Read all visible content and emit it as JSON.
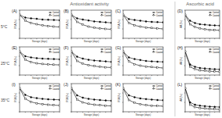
{
  "headers": [
    "Antioxidant activity",
    "Ascorbic acid"
  ],
  "row_labels": [
    "5°C",
    "25°C",
    "35°C"
  ],
  "chart_data": [
    {
      "type": "line",
      "title": "(A)",
      "x_label": "Storage (days)",
      "y_label": "RSA (%)",
      "x": [
        0,
        1,
        2,
        3,
        4,
        5,
        6,
        7
      ],
      "xlim": [
        0,
        7
      ],
      "xticks": [
        0,
        1,
        2,
        3,
        4,
        5,
        6,
        7
      ],
      "ylim": [
        0,
        120
      ],
      "yticks": [
        0,
        40,
        80,
        120
      ],
      "tick_labels": false,
      "legend": "upper right",
      "series": [
        {
          "name": "Control",
          "color": "#000000",
          "marker": "circle",
          "values": [
            100,
            88,
            85,
            83,
            80,
            79,
            78,
            77
          ]
        },
        {
          "name": "Coated",
          "color": "#000000",
          "marker": "square",
          "values": [
            100,
            75,
            65,
            60,
            55,
            52,
            50,
            48
          ]
        }
      ]
    },
    {
      "type": "line",
      "title": "(B)",
      "x_label": "Storage (days)",
      "y_label": "RSA (%)",
      "x": [
        0,
        1,
        2,
        3,
        4,
        5,
        6,
        7
      ],
      "xlim": [
        0,
        7
      ],
      "xticks": [
        0,
        1,
        2,
        3,
        4,
        5,
        6,
        7
      ],
      "ylim": [
        0,
        120
      ],
      "yticks": [
        0,
        40,
        80,
        120
      ],
      "tick_labels": false,
      "legend": "upper right",
      "series": [
        {
          "name": "Control",
          "color": "#000000",
          "marker": "circle",
          "values": [
            100,
            85,
            80,
            76,
            72,
            70,
            68,
            66
          ]
        },
        {
          "name": "Coated",
          "color": "#000000",
          "marker": "square",
          "values": [
            100,
            70,
            58,
            50,
            45,
            42,
            40,
            38
          ]
        }
      ]
    },
    {
      "type": "line",
      "title": "(C)",
      "x_label": "Storage (days)",
      "y_label": "RSA (%)",
      "x": [
        0,
        1,
        2,
        3,
        4,
        5,
        6,
        7
      ],
      "xlim": [
        0,
        7
      ],
      "xticks": [
        0,
        1,
        2,
        3,
        4,
        5,
        6,
        7
      ],
      "ylim": [
        0,
        120
      ],
      "yticks": [
        0,
        40,
        80,
        120
      ],
      "tick_labels": false,
      "legend": "upper right",
      "series": [
        {
          "name": "Control",
          "color": "#000000",
          "marker": "circle",
          "values": [
            100,
            82,
            78,
            75,
            72,
            70,
            69,
            68
          ]
        },
        {
          "name": "Coated",
          "color": "#000000",
          "marker": "square",
          "values": [
            100,
            65,
            55,
            50,
            46,
            44,
            42,
            40
          ]
        }
      ]
    },
    {
      "type": "line",
      "title": "(D)",
      "x_label": "Storage (days)",
      "y_label": "AA (%)",
      "x": [
        0,
        1,
        2,
        3,
        4,
        5,
        6,
        7
      ],
      "xlim": [
        0,
        7
      ],
      "xticks": [
        0,
        1,
        2,
        3,
        4,
        5,
        6,
        7
      ],
      "ylim": [
        0,
        120
      ],
      "yticks": [
        0,
        40,
        80,
        120
      ],
      "tick_labels": false,
      "legend": "upper right",
      "series": [
        {
          "name": "Control",
          "color": "#000000",
          "marker": "circle",
          "values": [
            100,
            75,
            65,
            60,
            58,
            56,
            55,
            54
          ]
        },
        {
          "name": "Coated",
          "color": "#000000",
          "marker": "square",
          "values": [
            100,
            60,
            48,
            42,
            38,
            36,
            35,
            34
          ]
        }
      ]
    },
    {
      "type": "line",
      "title": "(E)",
      "x_label": "Storage (days)",
      "y_label": "RSA (%)",
      "x": [
        0,
        1,
        2,
        3,
        4,
        5,
        6,
        7
      ],
      "xlim": [
        0,
        7
      ],
      "xticks": [
        0,
        1,
        2,
        3,
        4,
        5,
        6,
        7
      ],
      "ylim": [
        0,
        120
      ],
      "yticks": [
        0,
        40,
        80,
        120
      ],
      "tick_labels": false,
      "legend": "upper right",
      "series": [
        {
          "name": "Control",
          "color": "#000000",
          "marker": "circle",
          "values": [
            100,
            80,
            75,
            72,
            70,
            69,
            68,
            67
          ]
        },
        {
          "name": "Coated",
          "color": "#000000",
          "marker": "square",
          "values": [
            100,
            65,
            55,
            50,
            47,
            45,
            44,
            43
          ]
        }
      ]
    },
    {
      "type": "line",
      "title": "(F)",
      "x_label": "Storage (days)",
      "y_label": "RSA (%)",
      "x": [
        0,
        1,
        2,
        3,
        4,
        5,
        6,
        7
      ],
      "xlim": [
        0,
        7
      ],
      "xticks": [
        0,
        1,
        2,
        3,
        4,
        5,
        6,
        7
      ],
      "ylim": [
        0,
        120
      ],
      "yticks": [
        0,
        40,
        80,
        120
      ],
      "tick_labels": false,
      "legend": "upper right",
      "series": [
        {
          "name": "Control",
          "color": "#000000",
          "marker": "circle",
          "values": [
            100,
            78,
            70,
            65,
            62,
            60,
            58,
            56
          ]
        },
        {
          "name": "Coated",
          "color": "#000000",
          "marker": "square",
          "values": [
            100,
            60,
            48,
            42,
            38,
            35,
            33,
            32
          ]
        }
      ]
    },
    {
      "type": "line",
      "title": "(G)",
      "x_label": "Storage (days)",
      "y_label": "RSA (%)",
      "x": [
        0,
        1,
        2,
        3,
        4,
        5,
        6,
        7
      ],
      "xlim": [
        0,
        7
      ],
      "xticks": [
        0,
        1,
        2,
        3,
        4,
        5,
        6,
        7
      ],
      "ylim": [
        0,
        120
      ],
      "yticks": [
        0,
        40,
        80,
        120
      ],
      "tick_labels": false,
      "legend": "upper right",
      "series": [
        {
          "name": "Control",
          "color": "#000000",
          "marker": "circle",
          "values": [
            100,
            75,
            68,
            64,
            60,
            58,
            57,
            56
          ]
        },
        {
          "name": "Coated",
          "color": "#000000",
          "marker": "square",
          "values": [
            100,
            58,
            46,
            40,
            36,
            34,
            32,
            30
          ]
        }
      ]
    },
    {
      "type": "line",
      "title": "(H)",
      "x_label": "Storage (days)",
      "y_label": "AA (%)",
      "x": [
        0,
        1,
        2,
        3,
        4,
        5,
        6,
        7
      ],
      "xlim": [
        0,
        7
      ],
      "xticks": [
        0,
        1,
        2,
        3,
        4,
        5,
        6,
        7
      ],
      "ylim": [
        0,
        120
      ],
      "yticks": [
        0,
        40,
        80,
        120
      ],
      "tick_labels": false,
      "legend": "upper right",
      "series": [
        {
          "name": "Control",
          "color": "#000000",
          "marker": "circle",
          "values": [
            100,
            45,
            35,
            30,
            28,
            26,
            25,
            24
          ]
        },
        {
          "name": "Coated",
          "color": "#000000",
          "marker": "square",
          "values": [
            100,
            35,
            25,
            20,
            18,
            16,
            15,
            14
          ]
        }
      ]
    },
    {
      "type": "line",
      "title": "(I)",
      "x_label": "Storage (days)",
      "y_label": "RSA (%)",
      "x": [
        0,
        1,
        2,
        3,
        4,
        5,
        6,
        7
      ],
      "xlim": [
        0,
        7
      ],
      "xticks": [
        0,
        1,
        2,
        3,
        4,
        5,
        6,
        7
      ],
      "ylim": [
        0,
        120
      ],
      "yticks": [
        0,
        40,
        80,
        120
      ],
      "tick_labels": false,
      "legend": "upper right",
      "series": [
        {
          "name": "Control",
          "color": "#000000",
          "marker": "circle",
          "values": [
            100,
            72,
            62,
            58,
            55,
            53,
            52,
            51
          ]
        },
        {
          "name": "Coated",
          "color": "#000000",
          "marker": "square",
          "values": [
            100,
            55,
            42,
            36,
            32,
            30,
            28,
            27
          ]
        }
      ]
    },
    {
      "type": "line",
      "title": "(J)",
      "x_label": "Storage (days)",
      "y_label": "RSA (%)",
      "x": [
        0,
        1,
        2,
        3,
        4,
        5,
        6,
        7
      ],
      "xlim": [
        0,
        7
      ],
      "xticks": [
        0,
        1,
        2,
        3,
        4,
        5,
        6,
        7
      ],
      "ylim": [
        0,
        120
      ],
      "yticks": [
        0,
        40,
        80,
        120
      ],
      "tick_labels": false,
      "legend": "upper right",
      "series": [
        {
          "name": "Control",
          "color": "#000000",
          "marker": "circle",
          "values": [
            100,
            70,
            60,
            55,
            52,
            50,
            48,
            47
          ]
        },
        {
          "name": "Coated",
          "color": "#000000",
          "marker": "square",
          "values": [
            100,
            52,
            40,
            34,
            30,
            28,
            26,
            25
          ]
        }
      ]
    },
    {
      "type": "line",
      "title": "(K)",
      "x_label": "Storage (days)",
      "y_label": "RSA (%)",
      "x": [
        0,
        1,
        2,
        3,
        4,
        5,
        6,
        7
      ],
      "xlim": [
        0,
        7
      ],
      "xticks": [
        0,
        1,
        2,
        3,
        4,
        5,
        6,
        7
      ],
      "ylim": [
        0,
        120
      ],
      "yticks": [
        0,
        40,
        80,
        120
      ],
      "tick_labels": false,
      "legend": "upper right",
      "series": [
        {
          "name": "Control",
          "color": "#000000",
          "marker": "circle",
          "values": [
            100,
            70,
            62,
            57,
            54,
            52,
            50,
            49
          ]
        },
        {
          "name": "Coated",
          "color": "#000000",
          "marker": "square",
          "values": [
            100,
            50,
            38,
            32,
            28,
            26,
            25,
            24
          ]
        }
      ]
    },
    {
      "type": "line",
      "title": "(L)",
      "x_label": "Storage (days)",
      "y_label": "AA (%)",
      "x": [
        0,
        1,
        2,
        3,
        4,
        5,
        6,
        7
      ],
      "xlim": [
        0,
        7
      ],
      "xticks": [
        0,
        1,
        2,
        3,
        4,
        5,
        6,
        7
      ],
      "ylim": [
        0,
        120
      ],
      "yticks": [
        0,
        40,
        80,
        120
      ],
      "tick_labels": false,
      "legend": "upper right",
      "series": [
        {
          "name": "Control",
          "color": "#000000",
          "marker": "circle",
          "values": [
            100,
            40,
            30,
            26,
            24,
            22,
            21,
            20
          ]
        },
        {
          "name": "Coated",
          "color": "#000000",
          "marker": "square",
          "values": [
            100,
            30,
            20,
            16,
            14,
            12,
            11,
            10
          ]
        }
      ]
    }
  ]
}
